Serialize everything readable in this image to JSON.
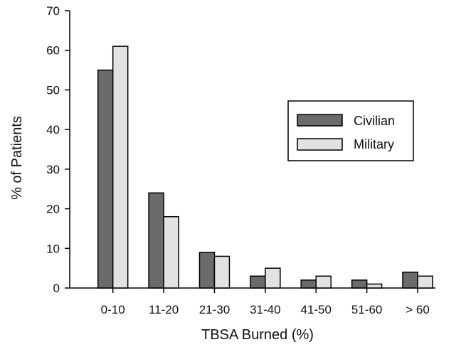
{
  "chart_data": {
    "type": "bar",
    "title": "",
    "xlabel": "TBSA Burned (%)",
    "ylabel": "% of Patients",
    "ylim": [
      0,
      70
    ],
    "yticks": [
      0,
      10,
      20,
      30,
      40,
      50,
      60,
      70
    ],
    "categories": [
      "0-10",
      "11-20",
      "21-30",
      "31-40",
      "41-50",
      "51-60",
      "> 60"
    ],
    "series": [
      {
        "name": "Civilian",
        "values": [
          55,
          24,
          9,
          3,
          2,
          2,
          4
        ],
        "color": "#6b6b6b"
      },
      {
        "name": "Military",
        "values": [
          61,
          18,
          8,
          5,
          3,
          1,
          3
        ],
        "color": "#e2e2e2"
      }
    ],
    "grid": false,
    "legend": {
      "position": "right",
      "entries": [
        "Civilian",
        "Military"
      ]
    }
  }
}
